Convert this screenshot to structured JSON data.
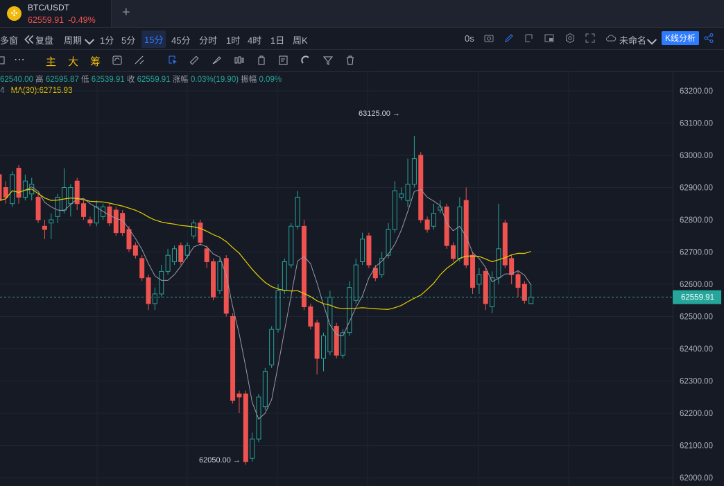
{
  "tab": {
    "symbol": "BTC/USDT",
    "price": "62559.91",
    "change": "-0.49%",
    "add": "+"
  },
  "toolbar": {
    "multi": "多窗",
    "replay": "复盘",
    "period": "周期",
    "intervals": [
      "1分",
      "5分",
      "15分",
      "45分",
      "分时",
      "1时",
      "4时",
      "1日",
      "周K"
    ],
    "active_interval": "15分",
    "countdown": "0s",
    "layout_name": "未命名",
    "kline_analysis": "K线分析"
  },
  "indicators": {
    "main": "主",
    "big": "大",
    "chip": "筹"
  },
  "ohlc": {
    "open_val": "62540.00",
    "high_label": "高",
    "high": "62595.87",
    "low_label": "低",
    "low": "62539.91",
    "close_label": "收",
    "close": "62559.91",
    "change_label": "涨幅",
    "change": "0.03%(19.90)",
    "amp_label": "振幅",
    "amp": "0.09%"
  },
  "ma": {
    "prefix": "4",
    "label": "MA(30):62715.93"
  },
  "chart_data": {
    "type": "candlestick",
    "y_ticks": [
      63200,
      63100,
      63000,
      62900,
      62800,
      62700,
      62600,
      62500,
      62400,
      62300,
      62200,
      62100,
      62000
    ],
    "ylim": [
      62000,
      63200
    ],
    "current_price": 62559.91,
    "high_marker": {
      "label": "63125.00 →",
      "value": 63125
    },
    "low_marker": {
      "label": "62050.00 →",
      "value": 62050
    },
    "candles": [
      [
        62940,
        62860,
        62960,
        62850
      ],
      [
        62900,
        62870,
        62920,
        62850
      ],
      [
        62850,
        62940,
        62950,
        62840
      ],
      [
        62960,
        62870,
        62970,
        62850
      ],
      [
        62870,
        62920,
        62940,
        62860
      ],
      [
        62880,
        62910,
        62930,
        62860
      ],
      [
        62870,
        62800,
        62880,
        62790
      ],
      [
        62780,
        62770,
        62800,
        62740
      ],
      [
        62790,
        62800,
        62820,
        62740
      ],
      [
        62810,
        62870,
        62880,
        62790
      ],
      [
        62830,
        62900,
        62960,
        62820
      ],
      [
        62850,
        62900,
        62910,
        62810
      ],
      [
        62920,
        62850,
        62930,
        62830
      ],
      [
        62850,
        62810,
        62860,
        62800
      ],
      [
        62800,
        62790,
        62810,
        62780
      ],
      [
        62790,
        62840,
        62860,
        62780
      ],
      [
        62810,
        62840,
        62850,
        62800
      ],
      [
        62840,
        62790,
        62850,
        62780
      ],
      [
        62830,
        62760,
        62840,
        62750
      ],
      [
        62820,
        62760,
        62830,
        62750
      ],
      [
        62770,
        62710,
        62780,
        62700
      ],
      [
        62720,
        62690,
        62730,
        62680
      ],
      [
        62680,
        62620,
        62690,
        62610
      ],
      [
        62620,
        62540,
        62630,
        62520
      ],
      [
        62540,
        62570,
        62590,
        62520
      ],
      [
        62570,
        62640,
        62660,
        62560
      ],
      [
        62640,
        62690,
        62710,
        62630
      ],
      [
        62670,
        62710,
        62720,
        62660
      ],
      [
        62720,
        62670,
        62730,
        62660
      ],
      [
        62690,
        62720,
        62730,
        62680
      ],
      [
        62750,
        62790,
        62800,
        62740
      ],
      [
        62790,
        62730,
        62800,
        62720
      ],
      [
        62710,
        62670,
        62720,
        62650
      ],
      [
        62670,
        62560,
        62680,
        62550
      ],
      [
        62580,
        62670,
        62680,
        62570
      ],
      [
        62680,
        62510,
        62690,
        62500
      ],
      [
        62500,
        62240,
        62510,
        62230
      ],
      [
        62260,
        62250,
        62270,
        62200
      ],
      [
        62260,
        62050,
        62270,
        62040
      ],
      [
        62060,
        62120,
        62140,
        62050
      ],
      [
        62120,
        62250,
        62260,
        62110
      ],
      [
        62220,
        62330,
        62340,
        62210
      ],
      [
        62350,
        62460,
        62470,
        62340
      ],
      [
        62460,
        62580,
        62600,
        62450
      ],
      [
        62580,
        62670,
        62680,
        62570
      ],
      [
        62660,
        62780,
        62790,
        62650
      ],
      [
        62780,
        62870,
        62890,
        62770
      ],
      [
        62780,
        62530,
        62800,
        62520
      ],
      [
        62530,
        62470,
        62540,
        62460
      ],
      [
        62480,
        62370,
        62490,
        62320
      ],
      [
        62370,
        62440,
        62450,
        62330
      ],
      [
        62390,
        62560,
        62580,
        62380
      ],
      [
        62470,
        62380,
        62480,
        62370
      ],
      [
        62380,
        62450,
        62460,
        62370
      ],
      [
        62450,
        62590,
        62610,
        62440
      ],
      [
        62550,
        62660,
        62680,
        62540
      ],
      [
        62670,
        62740,
        62760,
        62660
      ],
      [
        62750,
        62660,
        62760,
        62650
      ],
      [
        62650,
        62620,
        62660,
        62610
      ],
      [
        62630,
        62680,
        62700,
        62620
      ],
      [
        62690,
        62770,
        62790,
        62680
      ],
      [
        62770,
        62890,
        62920,
        62760
      ],
      [
        62870,
        62880,
        62900,
        62860
      ],
      [
        62860,
        62910,
        62990,
        62840
      ],
      [
        62910,
        62990,
        63060,
        62900
      ],
      [
        63000,
        62800,
        63010,
        62790
      ],
      [
        62800,
        62770,
        62810,
        62760
      ],
      [
        62780,
        62820,
        62850,
        62770
      ],
      [
        62830,
        62840,
        62860,
        62820
      ],
      [
        62840,
        62720,
        62850,
        62710
      ],
      [
        62720,
        62680,
        62730,
        62670
      ],
      [
        62680,
        62840,
        62870,
        62670
      ],
      [
        62860,
        62660,
        62900,
        62650
      ],
      [
        62690,
        62590,
        62700,
        62570
      ],
      [
        62600,
        62630,
        62650,
        62570
      ],
      [
        62640,
        62540,
        62650,
        62520
      ],
      [
        62530,
        62620,
        62640,
        62510
      ],
      [
        62620,
        62710,
        62850,
        62600
      ],
      [
        62790,
        62660,
        62800,
        62650
      ],
      [
        62680,
        62630,
        62690,
        62600
      ],
      [
        62630,
        62590,
        62640,
        62560
      ],
      [
        62600,
        62550,
        62610,
        62540
      ],
      [
        62540,
        62560,
        62600,
        62540
      ]
    ]
  }
}
